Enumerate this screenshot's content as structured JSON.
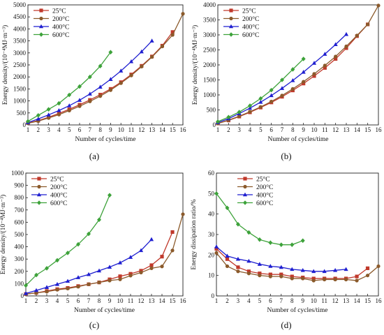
{
  "series_styles": [
    {
      "name": "25°C",
      "color": "#c0392b",
      "marker": "square"
    },
    {
      "name": "200°C",
      "color": "#8b5a2b",
      "marker": "circle"
    },
    {
      "name": "400°C",
      "color": "#1f1fd0",
      "marker": "triangle"
    },
    {
      "name": "600°C",
      "color": "#3da23a",
      "marker": "diamond"
    }
  ],
  "chart_data": [
    {
      "type": "line",
      "panel": "(a)",
      "xlabel": "Number of cycles/time",
      "ylabel": "Energy density/(10⁻⁴MJ·m⁻³)",
      "xlim": [
        1,
        16
      ],
      "ylim": [
        0,
        5000
      ],
      "xticks": [
        1,
        2,
        3,
        4,
        5,
        6,
        7,
        8,
        9,
        10,
        11,
        12,
        13,
        14,
        15,
        16
      ],
      "yticks": [
        0,
        500,
        1000,
        1500,
        2000,
        2500,
        3000,
        3500,
        4000,
        4500,
        5000
      ],
      "legend": "top-left",
      "series": [
        {
          "name": "25°C",
          "x": [
            1,
            2,
            3,
            4,
            5,
            6,
            7,
            8,
            9,
            10,
            11,
            12,
            13,
            14,
            15
          ],
          "values": [
            80,
            180,
            320,
            480,
            650,
            840,
            1040,
            1260,
            1500,
            1780,
            2100,
            2460,
            2850,
            3300,
            3870
          ]
        },
        {
          "name": "200°C",
          "x": [
            1,
            2,
            3,
            4,
            5,
            6,
            7,
            8,
            9,
            10,
            11,
            12,
            13,
            14,
            15,
            16
          ],
          "values": [
            70,
            160,
            290,
            430,
            600,
            780,
            980,
            1200,
            1450,
            1740,
            2060,
            2430,
            2830,
            3270,
            3750,
            4630
          ]
        },
        {
          "name": "400°C",
          "x": [
            1,
            2,
            3,
            4,
            5,
            6,
            7,
            8,
            9,
            10,
            11,
            12,
            13
          ],
          "values": [
            100,
            250,
            420,
            600,
            800,
            1030,
            1290,
            1580,
            1900,
            2250,
            2640,
            3050,
            3500
          ]
        },
        {
          "name": "600°C",
          "x": [
            1,
            2,
            3,
            4,
            5,
            6,
            7,
            8,
            9
          ],
          "values": [
            150,
            400,
            650,
            900,
            1250,
            1600,
            2000,
            2450,
            3030
          ]
        }
      ]
    },
    {
      "type": "line",
      "panel": "(b)",
      "xlabel": "Number of cycles/time",
      "ylabel": "Energy density/(10⁻⁴MJ·m⁻³)",
      "xlim": [
        1,
        16
      ],
      "ylim": [
        0,
        4000
      ],
      "xticks": [
        1,
        2,
        3,
        4,
        5,
        6,
        7,
        8,
        9,
        10,
        11,
        12,
        13,
        14,
        15,
        16
      ],
      "yticks": [
        0,
        500,
        1000,
        1500,
        2000,
        2500,
        3000,
        3500,
        4000
      ],
      "legend": "top-left",
      "series": [
        {
          "name": "25°C",
          "x": [
            1,
            2,
            3,
            4,
            5,
            6,
            7,
            8,
            9,
            10,
            11,
            12,
            13,
            14,
            15
          ],
          "values": [
            50,
            150,
            280,
            420,
            580,
            750,
            940,
            1150,
            1380,
            1630,
            1900,
            2200,
            2560,
            2960,
            3350
          ]
        },
        {
          "name": "200°C",
          "x": [
            1,
            2,
            3,
            4,
            5,
            6,
            7,
            8,
            9,
            10,
            11,
            12,
            13,
            14,
            15,
            16
          ],
          "values": [
            50,
            160,
            290,
            440,
            600,
            780,
            980,
            1200,
            1440,
            1700,
            1980,
            2280,
            2620,
            2980,
            3350,
            3980
          ]
        },
        {
          "name": "400°C",
          "x": [
            1,
            2,
            3,
            4,
            5,
            6,
            7,
            8,
            9,
            10,
            11,
            12,
            13
          ],
          "values": [
            80,
            210,
            380,
            560,
            760,
            980,
            1220,
            1480,
            1760,
            2060,
            2360,
            2680,
            3020
          ]
        },
        {
          "name": "600°C",
          "x": [
            1,
            2,
            3,
            4,
            5,
            6,
            7,
            8,
            9
          ],
          "values": [
            110,
            260,
            430,
            640,
            880,
            1160,
            1500,
            1850,
            2200
          ]
        }
      ]
    },
    {
      "type": "line",
      "panel": "(c)",
      "xlabel": "Number of cycles/time",
      "ylabel": "Energy density/(10⁻⁴MJ·m⁻³)",
      "xlim": [
        1,
        16
      ],
      "ylim": [
        0,
        1000
      ],
      "xticks": [
        1,
        2,
        3,
        4,
        5,
        6,
        7,
        8,
        9,
        10,
        11,
        12,
        13,
        14,
        15,
        16
      ],
      "yticks": [
        0,
        100,
        200,
        300,
        400,
        500,
        600,
        700,
        800,
        900,
        1000
      ],
      "legend": "top-left",
      "series": [
        {
          "name": "25°C",
          "x": [
            1,
            2,
            3,
            4,
            5,
            6,
            7,
            8,
            9,
            10,
            11,
            12,
            13,
            14,
            15
          ],
          "values": [
            15,
            25,
            40,
            55,
            65,
            80,
            95,
            110,
            135,
            160,
            180,
            205,
            250,
            320,
            520
          ]
        },
        {
          "name": "200°C",
          "x": [
            1,
            2,
            3,
            4,
            5,
            6,
            7,
            8,
            9,
            10,
            11,
            12,
            13,
            14,
            15,
            16
          ],
          "values": [
            15,
            25,
            35,
            50,
            60,
            75,
            95,
            110,
            125,
            135,
            165,
            190,
            225,
            240,
            370,
            665
          ]
        },
        {
          "name": "400°C",
          "x": [
            1,
            2,
            3,
            4,
            5,
            6,
            7,
            8,
            9,
            10,
            11,
            12,
            13
          ],
          "values": [
            20,
            45,
            70,
            95,
            120,
            150,
            175,
            205,
            235,
            270,
            315,
            370,
            460
          ]
        },
        {
          "name": "600°C",
          "x": [
            1,
            2,
            3,
            4,
            5,
            6,
            7,
            8,
            9
          ],
          "values": [
            85,
            170,
            225,
            290,
            350,
            420,
            505,
            620,
            820
          ]
        }
      ]
    },
    {
      "type": "line",
      "panel": "(d)",
      "xlabel": "Number of cycles/time",
      "ylabel": "Energy dissipation ratio/%",
      "xlim": [
        1,
        16
      ],
      "ylim": [
        0,
        60
      ],
      "xticks": [
        1,
        2,
        3,
        4,
        5,
        6,
        7,
        8,
        9,
        10,
        11,
        12,
        13,
        14,
        15,
        16
      ],
      "yticks": [
        0,
        10,
        20,
        30,
        40,
        50,
        60
      ],
      "legend": "top-center",
      "series": [
        {
          "name": "25°C",
          "x": [
            1,
            2,
            3,
            4,
            5,
            6,
            7,
            8,
            9,
            10,
            11,
            12,
            13,
            14,
            15
          ],
          "values": [
            23,
            18,
            14,
            12,
            11,
            10.5,
            10.5,
            9.5,
            9,
            8.5,
            8.5,
            8.5,
            8.5,
            9.5,
            13.5
          ]
        },
        {
          "name": "200°C",
          "x": [
            1,
            2,
            3,
            4,
            5,
            6,
            7,
            8,
            9,
            10,
            11,
            12,
            13,
            14,
            15,
            16
          ],
          "values": [
            21,
            14.5,
            12,
            11,
            10,
            9.5,
            9.5,
            8.5,
            8.5,
            7.5,
            8,
            8,
            8,
            7.5,
            10,
            14.5
          ]
        },
        {
          "name": "400°C",
          "x": [
            1,
            2,
            3,
            4,
            5,
            6,
            7,
            8,
            9,
            10,
            11,
            12,
            13
          ],
          "values": [
            24,
            19.5,
            18,
            17,
            15.5,
            14.5,
            14,
            13,
            12.5,
            12,
            12,
            12.5,
            13
          ]
        },
        {
          "name": "600°C",
          "x": [
            1,
            2,
            3,
            4,
            5,
            6,
            7,
            8,
            9
          ],
          "values": [
            50,
            43,
            35,
            31,
            27.5,
            26,
            25,
            25,
            27
          ]
        }
      ]
    }
  ]
}
